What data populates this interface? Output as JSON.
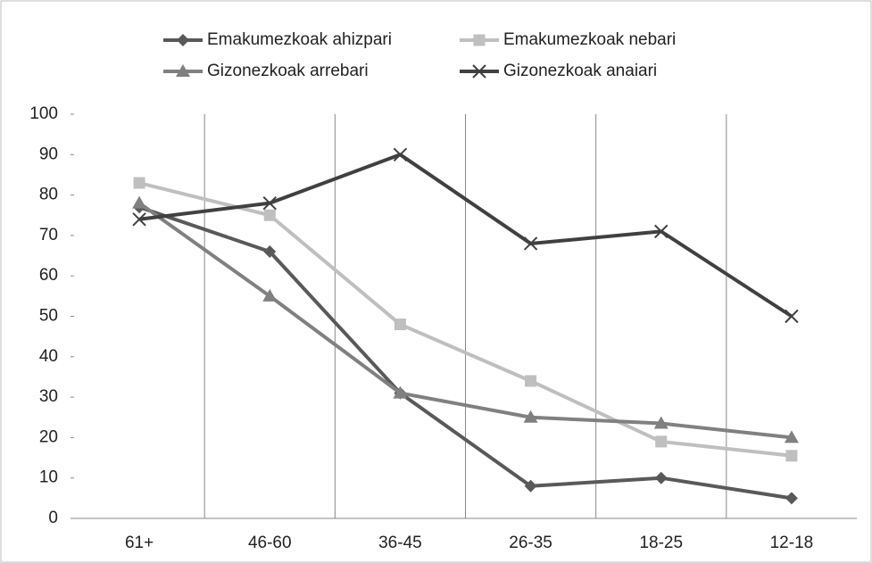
{
  "chart_data": {
    "type": "line",
    "categories": [
      "61+",
      "46-60",
      "36-45",
      "26-35",
      "18-25",
      "12-18"
    ],
    "series": [
      {
        "name": "Emakumezkoak ahizpari",
        "color": "#595959",
        "marker": "diamond",
        "values": [
          77,
          66,
          31,
          8,
          10,
          5
        ]
      },
      {
        "name": "Emakumezkoak nebari",
        "color": "#bfbfbf",
        "marker": "square",
        "values": [
          83,
          75,
          48,
          34,
          19,
          15.5
        ]
      },
      {
        "name": "Gizonezkoak arrebari",
        "color": "#808080",
        "marker": "triangle",
        "values": [
          78,
          55,
          31,
          25,
          23.5,
          20
        ]
      },
      {
        "name": "Gizonezkoak anaiari",
        "color": "#404040",
        "marker": "x",
        "values": [
          74,
          78,
          90,
          68,
          71,
          50
        ]
      }
    ],
    "ylim": [
      0,
      100
    ],
    "yticks": [
      0,
      10,
      20,
      30,
      40,
      50,
      60,
      70,
      80,
      90,
      100
    ],
    "legend": "top"
  }
}
